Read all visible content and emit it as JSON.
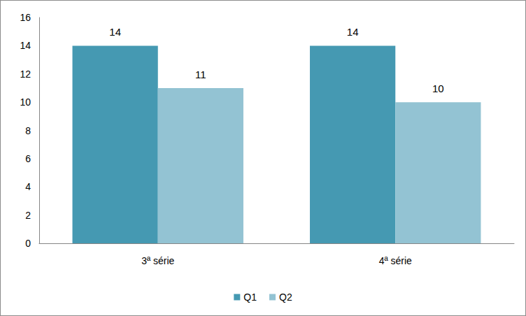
{
  "chart_data": {
    "type": "bar",
    "categories": [
      "3ª série",
      "4ª série"
    ],
    "series": [
      {
        "name": "Q1",
        "color": "#4599b2",
        "values": [
          14,
          14
        ]
      },
      {
        "name": "Q2",
        "color": "#93c3d3",
        "values": [
          11,
          10
        ]
      }
    ],
    "ylim": [
      0,
      16
    ],
    "yticks": [
      0,
      2,
      4,
      6,
      8,
      10,
      12,
      14,
      16
    ],
    "grid": false,
    "legend": "bottom",
    "data_labels": true
  }
}
